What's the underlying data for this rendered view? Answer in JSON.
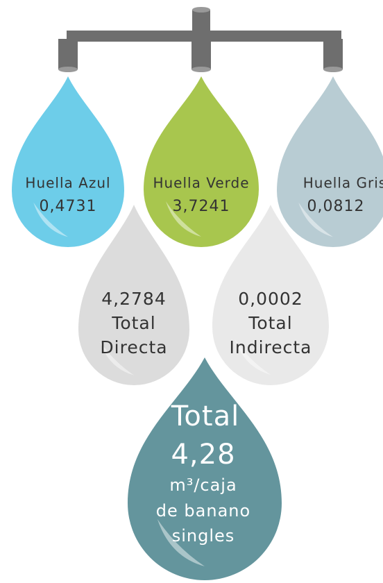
{
  "top_row": [
    {
      "label": "Huella Azul",
      "value": "0,4731"
    },
    {
      "label": "Huella Verde",
      "value": "3,7241"
    },
    {
      "label": "Huella Gris",
      "value": "0,0812"
    }
  ],
  "middle_row": [
    {
      "value": "4,2784",
      "lines": [
        "Total",
        "Directa"
      ]
    },
    {
      "value": "0,0002",
      "lines": [
        "Total",
        "Indirecta"
      ]
    }
  ],
  "total": {
    "title": "Total",
    "value": "4,28",
    "lines": [
      "m³/caja",
      "de banano",
      "singles"
    ]
  }
}
